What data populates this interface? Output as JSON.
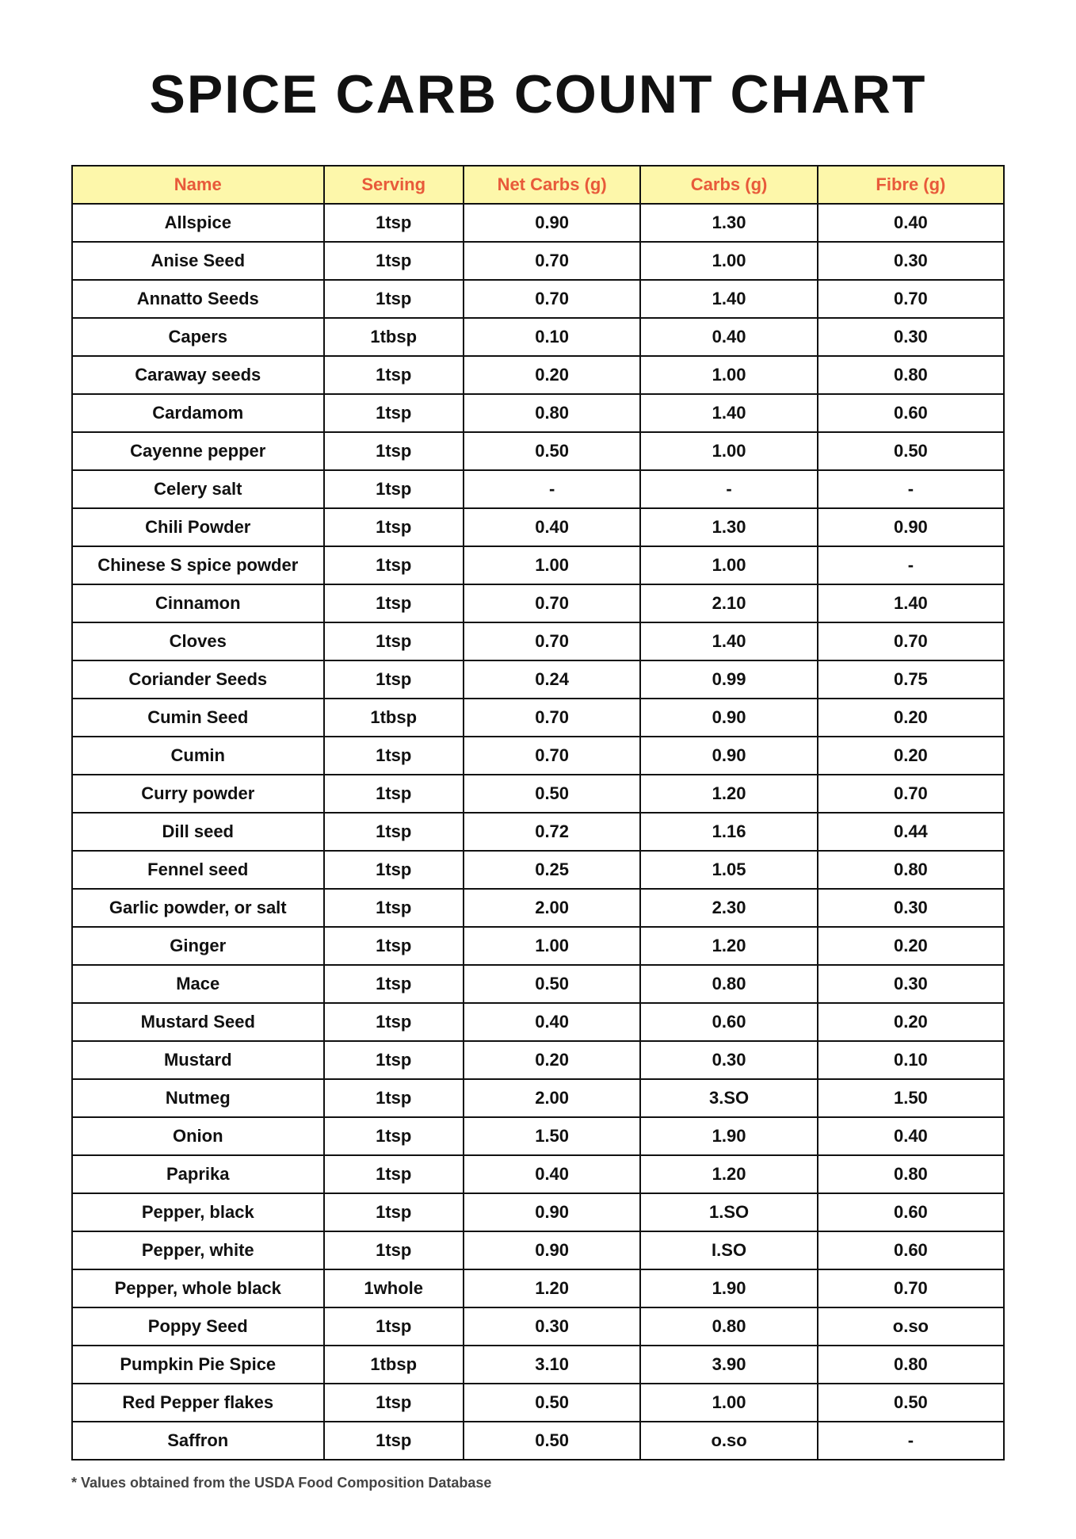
{
  "title": "SPICE CARB COUNT CHART",
  "footnote": "* Values obtained from the USDA Food Composition Database",
  "table": {
    "type": "table",
    "header_bg": "#fdf7aa",
    "header_color": "#e85a3a",
    "border_color": "#111111",
    "cell_fontsize": 22,
    "header_fontsize": 22,
    "columns": [
      "Name",
      "Serving",
      "Net Carbs (g)",
      "Carbs (g)",
      "Fibre (g)"
    ],
    "column_widths_pct": [
      27,
      15,
      19,
      19,
      20
    ],
    "rows": [
      [
        "Allspice",
        "1tsp",
        "0.90",
        "1.30",
        "0.40"
      ],
      [
        "Anise Seed",
        "1tsp",
        "0.70",
        "1.00",
        "0.30"
      ],
      [
        "Annatto Seeds",
        "1tsp",
        "0.70",
        "1.40",
        "0.70"
      ],
      [
        "Capers",
        "1tbsp",
        "0.10",
        "0.40",
        "0.30"
      ],
      [
        "Caraway seeds",
        "1tsp",
        "0.20",
        "1.00",
        "0.80"
      ],
      [
        "Cardamom",
        "1tsp",
        "0.80",
        "1.40",
        "0.60"
      ],
      [
        "Cayenne pepper",
        "1tsp",
        "0.50",
        "1.00",
        "0.50"
      ],
      [
        "Celery salt",
        "1tsp",
        "-",
        "-",
        "-"
      ],
      [
        "Chili Powder",
        "1tsp",
        "0.40",
        "1.30",
        "0.90"
      ],
      [
        "Chinese S spice powder",
        "1tsp",
        "1.00",
        "1.00",
        "-"
      ],
      [
        "Cinnamon",
        "1tsp",
        "0.70",
        "2.10",
        "1.40"
      ],
      [
        "Cloves",
        "1tsp",
        "0.70",
        "1.40",
        "0.70"
      ],
      [
        "Coriander Seeds",
        "1tsp",
        "0.24",
        "0.99",
        "0.75"
      ],
      [
        "Cumin Seed",
        "1tbsp",
        "0.70",
        "0.90",
        "0.20"
      ],
      [
        "Cumin",
        "1tsp",
        "0.70",
        "0.90",
        "0.20"
      ],
      [
        "Curry powder",
        "1tsp",
        "0.50",
        "1.20",
        "0.70"
      ],
      [
        "Dill seed",
        "1tsp",
        "0.72",
        "1.16",
        "0.44"
      ],
      [
        "Fennel seed",
        "1tsp",
        "0.25",
        "1.05",
        "0.80"
      ],
      [
        "Garlic powder, or salt",
        "1tsp",
        "2.00",
        "2.30",
        "0.30"
      ],
      [
        "Ginger",
        "1tsp",
        "1.00",
        "1.20",
        "0.20"
      ],
      [
        "Mace",
        "1tsp",
        "0.50",
        "0.80",
        "0.30"
      ],
      [
        "Mustard Seed",
        "1tsp",
        "0.40",
        "0.60",
        "0.20"
      ],
      [
        "Mustard",
        "1tsp",
        "0.20",
        "0.30",
        "0.10"
      ],
      [
        "Nutmeg",
        "1tsp",
        "2.00",
        "3.SO",
        "1.50"
      ],
      [
        "Onion",
        "1tsp",
        "1.50",
        "1.90",
        "0.40"
      ],
      [
        "Paprika",
        "1tsp",
        "0.40",
        "1.20",
        "0.80"
      ],
      [
        "Pepper, black",
        "1tsp",
        "0.90",
        "1.SO",
        "0.60"
      ],
      [
        "Pepper, white",
        "1tsp",
        "0.90",
        "I.SO",
        "0.60"
      ],
      [
        "Pepper, whole black",
        "1whole",
        "1.20",
        "1.90",
        "0.70"
      ],
      [
        "Poppy Seed",
        "1tsp",
        "0.30",
        "0.80",
        "o.so"
      ],
      [
        "Pumpkin Pie Spice",
        "1tbsp",
        "3.10",
        "3.90",
        "0.80"
      ],
      [
        "Red Pepper flakes",
        "1tsp",
        "0.50",
        "1.00",
        "0.50"
      ],
      [
        "Saffron",
        "1tsp",
        "0.50",
        "o.so",
        "-"
      ]
    ]
  }
}
